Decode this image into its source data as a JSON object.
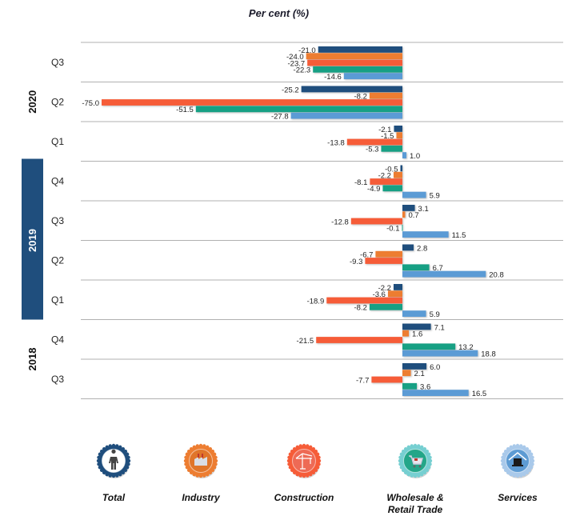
{
  "chart_data": {
    "type": "bar",
    "orientation": "horizontal",
    "title": "Per cent (%)",
    "xlabel": "",
    "ylabel": "",
    "xlim": [
      -75,
      40
    ],
    "grid": true,
    "legend_position": "bottom",
    "groups": [
      {
        "year": "2020",
        "highlight": false,
        "quarters": [
          "Q3",
          "Q2",
          "Q1"
        ]
      },
      {
        "year": "2019",
        "highlight": true,
        "quarters": [
          "Q4",
          "Q3",
          "Q2",
          "Q1"
        ]
      },
      {
        "year": "2018",
        "highlight": false,
        "quarters": [
          "Q4",
          "Q3"
        ]
      }
    ],
    "categories": [
      "2020 Q3",
      "2020 Q2",
      "2020 Q1",
      "2019 Q4",
      "2019 Q3",
      "2019 Q2",
      "2019 Q1",
      "2018 Q4",
      "2018 Q3"
    ],
    "series": [
      {
        "name": "Total",
        "color": "#1f4e7d",
        "values": [
          -21.0,
          -25.2,
          -2.1,
          -0.5,
          3.1,
          2.8,
          -2.2,
          7.1,
          6.0
        ],
        "labels": [
          "-21.0",
          "-25.2",
          "-2.1",
          "-0.5",
          "3.1",
          "2.8",
          "-2.2",
          "7.1",
          "6.0"
        ]
      },
      {
        "name": "Industry",
        "color": "#ed7d31",
        "values": [
          -24.0,
          -8.2,
          -1.5,
          -2.2,
          0.7,
          -6.7,
          -3.6,
          1.6,
          2.1
        ],
        "labels": [
          "-24.0",
          "-8.2",
          "-1.5",
          "-2.2",
          "0.7",
          "-6.7",
          "-3.6",
          "1.6",
          "2.1"
        ]
      },
      {
        "name": "Construction",
        "color": "#f65c38",
        "values": [
          -23.7,
          -75.0,
          -13.8,
          -8.1,
          -12.8,
          -9.3,
          -18.9,
          -21.5,
          -7.7
        ],
        "labels": [
          "-23.7",
          "-75.0",
          "-13.8",
          "-8.1",
          "-12.8",
          "-9.3",
          "-18.9",
          "-21.5",
          "-7.7"
        ]
      },
      {
        "name": "Wholesale & Retail Trade",
        "color": "#17a084",
        "values": [
          -22.3,
          -51.5,
          -5.3,
          -4.9,
          -0.1,
          6.7,
          -8.2,
          13.2,
          3.6
        ],
        "labels": [
          "-22.3",
          "-51.5",
          "-5.3",
          "-4.9",
          "-0.1",
          "6.7",
          "-8.2",
          "13.2",
          "3.6"
        ]
      },
      {
        "name": "Services",
        "color": "#5b9bd5",
        "values": [
          -14.6,
          -27.8,
          1.0,
          5.9,
          11.5,
          20.8,
          5.9,
          18.8,
          16.5
        ],
        "labels": [
          "-14.6",
          "-27.8",
          "1.0",
          "5.9",
          "11.5",
          "20.8",
          "5.9",
          "18.8",
          "16.5"
        ]
      }
    ]
  },
  "legend": [
    {
      "label": "Total",
      "icon": "worker-icon",
      "ring_color": "#1f4e7d",
      "fill_color": "#ffffff"
    },
    {
      "label": "Industry",
      "icon": "factory-icon",
      "ring_color": "#ed7d31",
      "fill_color": "#e0752a"
    },
    {
      "label": "Construction",
      "icon": "crane-icon",
      "ring_color": "#f65c38",
      "fill_color": "#ee6a55"
    },
    {
      "label": "Wholesale &\nRetail Trade",
      "icon": "shopping-cart-icon",
      "ring_color": "#76cfd1",
      "fill_color": "#23a688"
    },
    {
      "label": "Services",
      "icon": "house-monitor-icon",
      "ring_color": "#a9c9ea",
      "fill_color": "#5d9bd3"
    }
  ],
  "highlight_color": "#1f4e7d",
  "gridline_color": "#b0b0b0"
}
